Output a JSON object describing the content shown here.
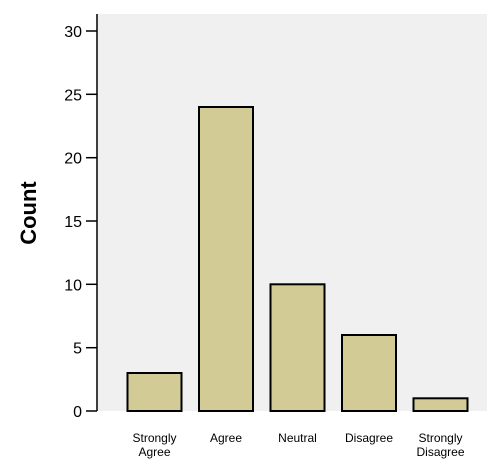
{
  "chart_data": {
    "type": "bar",
    "title": "",
    "xlabel": "",
    "ylabel": "Count",
    "categories": [
      [
        "Strongly",
        "Agree"
      ],
      [
        "Agree"
      ],
      [
        "Neutral"
      ],
      [
        "Disagree"
      ],
      [
        "Strongly",
        "Disagree"
      ]
    ],
    "values": [
      3,
      24,
      10,
      6,
      1
    ],
    "ylim": [
      0,
      30
    ],
    "yticks": [
      0,
      5,
      10,
      15,
      20,
      25,
      30
    ],
    "grid": false,
    "legend": "none",
    "colors": {
      "bar_fill": "#d3cb96",
      "bar_stroke": "#000000",
      "plot_background": "#f0f0f0",
      "axis": "#000000"
    }
  }
}
